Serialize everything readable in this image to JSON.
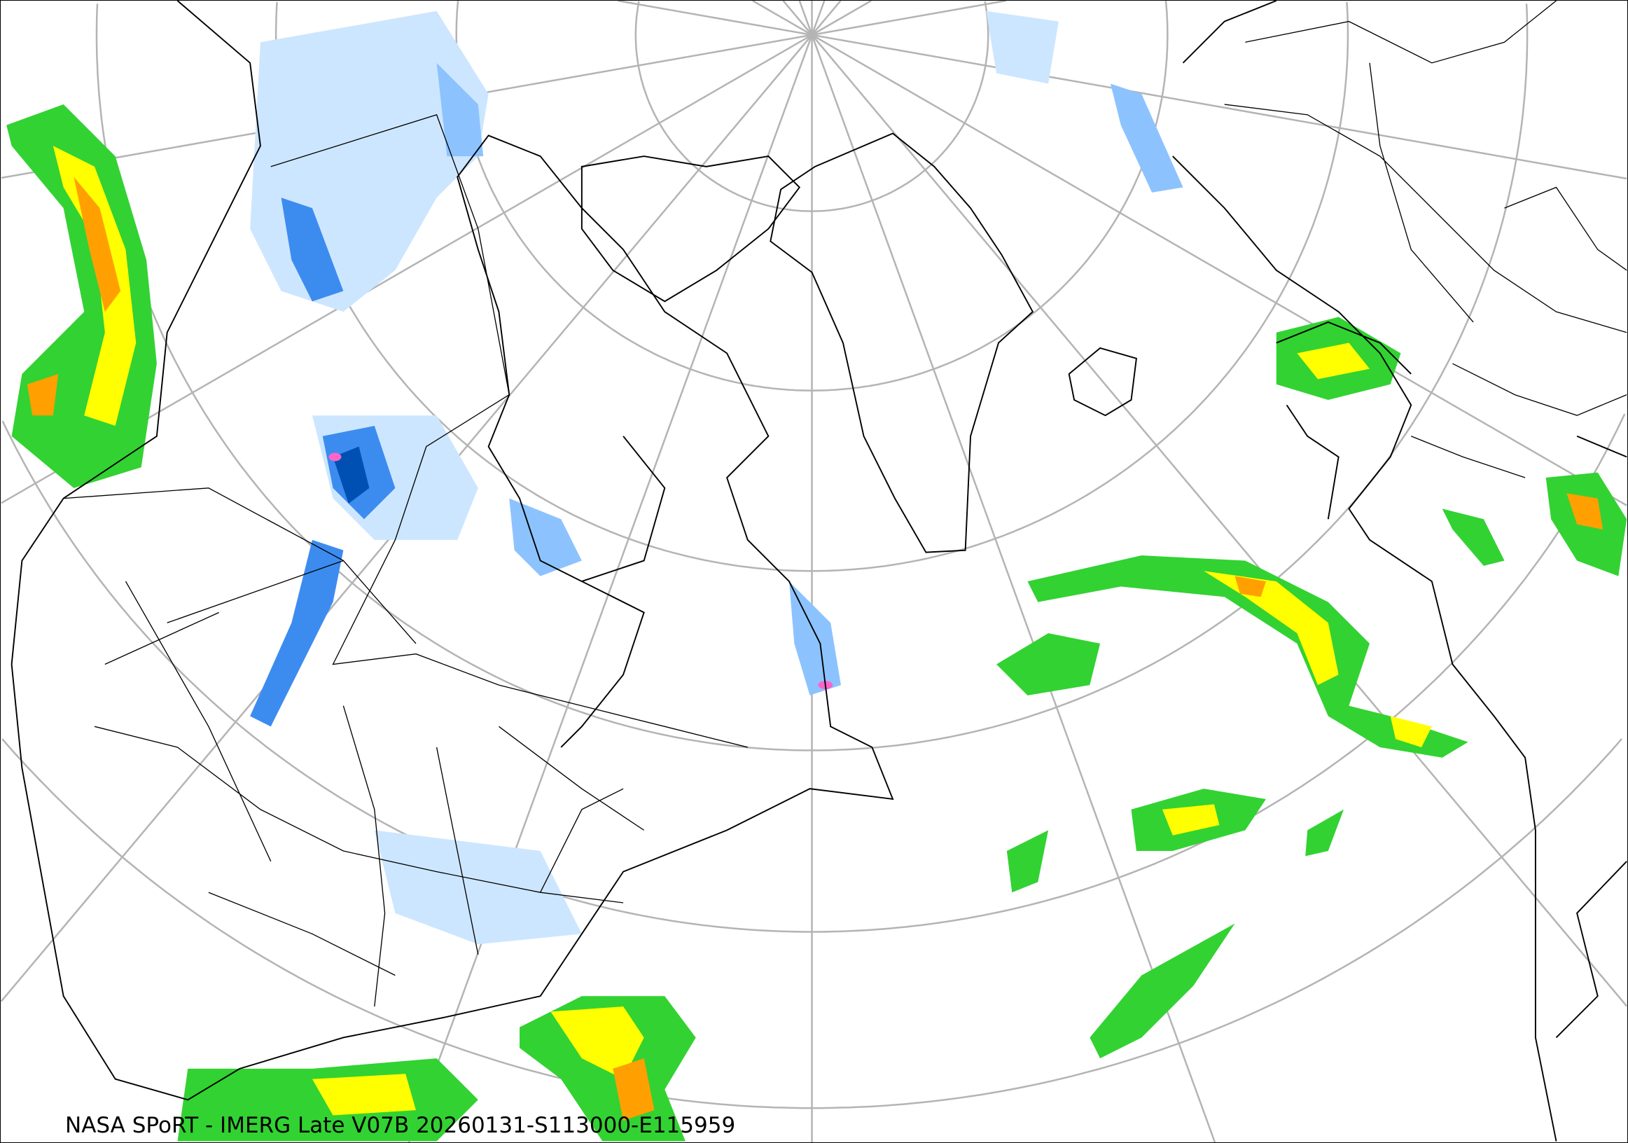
{
  "caption": "NASA SPoRT - IMERG Late V07B 20260131-S113000-E115959",
  "map": {
    "projection": "polar stereographic (north pole)",
    "graticule": true,
    "precip_palette": {
      "very_light_snow": "#cde6ff",
      "light_snow": "#8cc3ff",
      "snow": "#3c8cf0",
      "heavy_snow": "#0050b4",
      "mixed": "#ff64c8",
      "dark_green": "#007800",
      "green": "#32d232",
      "light_green": "#96ff32",
      "yellow": "#ffff00",
      "orange": "#ffa000",
      "red": "#f01414"
    }
  }
}
